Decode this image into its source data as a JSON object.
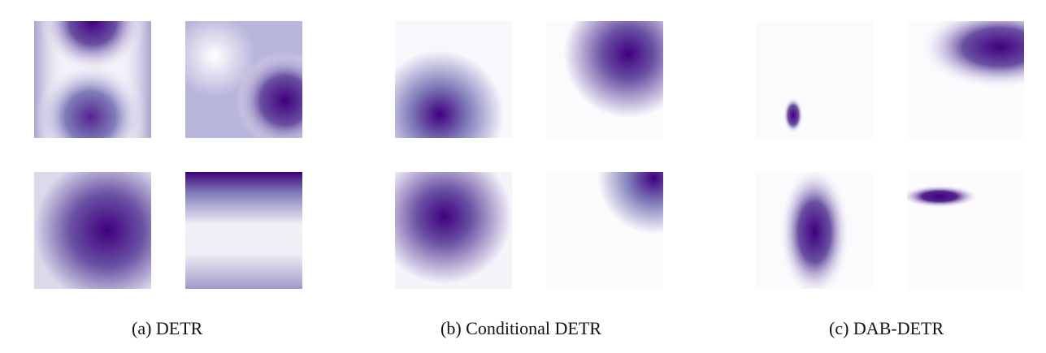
{
  "figure": {
    "colormap": {
      "low": "#ffffff",
      "high": "#3f007d"
    },
    "panels": [
      {
        "caption": "(a) DETR",
        "maps": [
          {
            "description_key": "detr-1"
          },
          {
            "description_key": "detr-2"
          },
          {
            "description_key": "detr-3"
          },
          {
            "description_key": "detr-4"
          }
        ]
      },
      {
        "caption": "(b) Conditional DETR",
        "maps": [
          {
            "description_key": "cond-1"
          },
          {
            "description_key": "cond-2"
          },
          {
            "description_key": "cond-3"
          },
          {
            "description_key": "cond-4"
          }
        ]
      },
      {
        "caption": "(c) DAB-DETR",
        "maps": [
          {
            "description_key": "dab-1"
          },
          {
            "description_key": "dab-2"
          },
          {
            "description_key": "dab-3"
          },
          {
            "description_key": "dab-4"
          }
        ]
      }
    ]
  }
}
